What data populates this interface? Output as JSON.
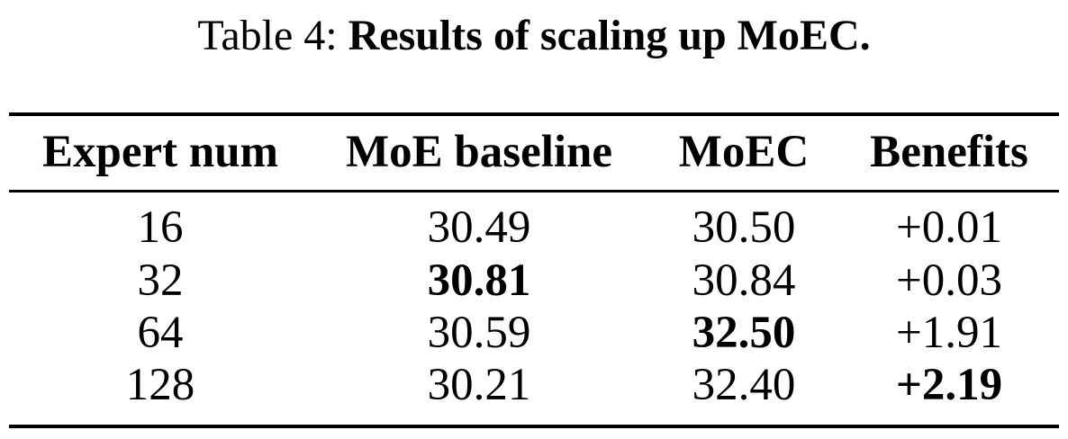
{
  "caption": {
    "prefix": "Table 4:",
    "title": "Results of scaling up MoEC."
  },
  "table": {
    "headers": [
      "Expert num",
      "MoE baseline",
      "MoEC",
      "Benefits"
    ],
    "rows": [
      [
        "16",
        "30.49",
        "30.50",
        "+0.01"
      ],
      [
        "32",
        "30.81",
        "30.84",
        "+0.03"
      ],
      [
        "64",
        "30.59",
        "32.50",
        "+1.91"
      ],
      [
        "128",
        "30.21",
        "32.40",
        "+2.19"
      ]
    ],
    "bold_cells": [
      [
        1,
        1
      ],
      [
        2,
        2
      ],
      [
        3,
        3
      ]
    ]
  }
}
